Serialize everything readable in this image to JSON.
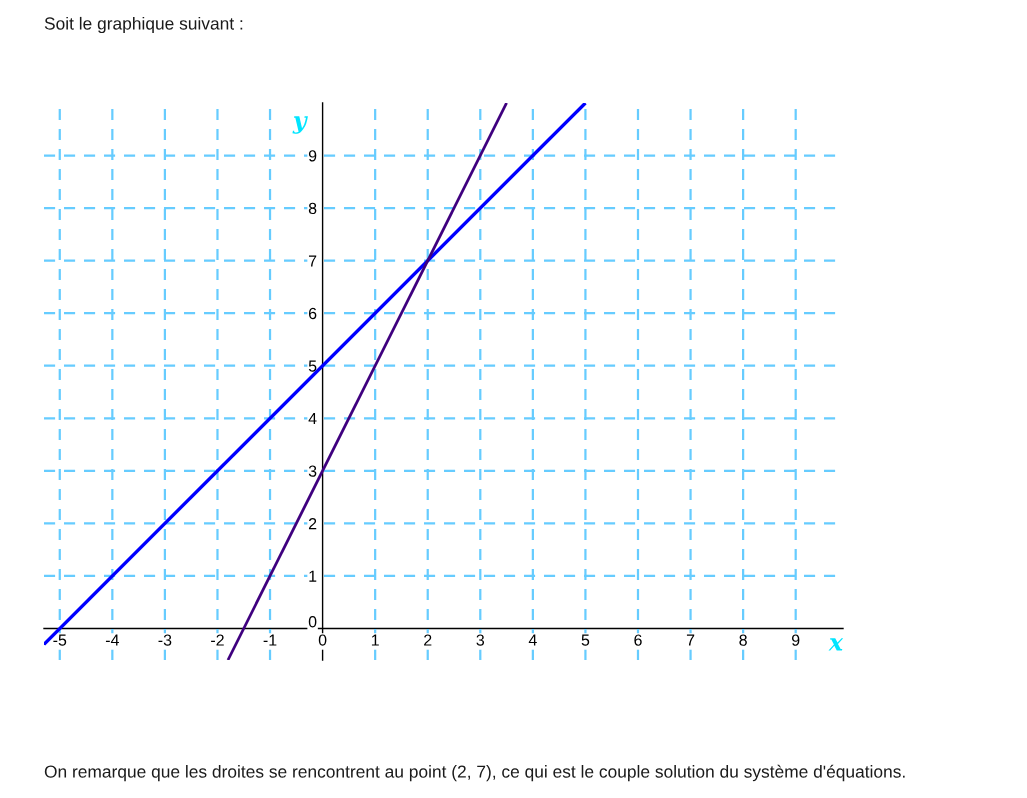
{
  "chart_data": {
    "type": "line",
    "title": "Soit le graphique suivant :",
    "xlabel": "x",
    "ylabel": "y",
    "annotations": [
      "On remarque que les droites se rencontrent au point (2, 7), ce qui est le couple solution du système d'équations."
    ],
    "series": [
      {
        "color": "#0000ff",
        "x": [
          -5.3,
          5
        ],
        "values": [
          -0.3,
          10
        ]
      },
      {
        "color": "#3f007f",
        "x": [
          -1.8,
          3.5
        ],
        "values": [
          -0.6,
          10
        ]
      }
    ],
    "xlim": [
      -5.3,
      9.9
    ],
    "ylim": [
      -0.6,
      10
    ],
    "xticks": [
      -5,
      -4,
      -3,
      -2,
      -1,
      0,
      1,
      2,
      3,
      4,
      5,
      6,
      7,
      8,
      9
    ],
    "yticks": [
      0,
      1,
      2,
      3,
      4,
      5,
      6,
      7,
      8,
      9
    ],
    "grid": true
  }
}
